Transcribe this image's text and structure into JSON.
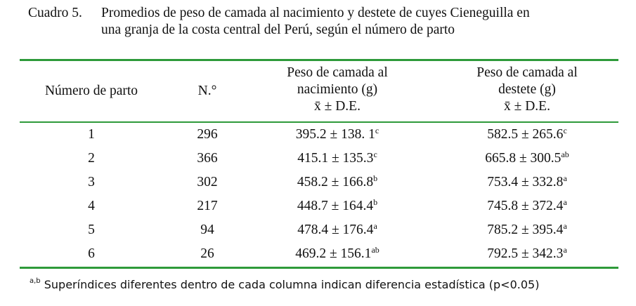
{
  "caption": {
    "label": "Cuadro 5.",
    "lines": [
      "Promedios de peso de camada al nacimiento y destete de cuyes Cieneguilla en",
      "una granja de la costa central del Perú, según el número de parto"
    ]
  },
  "table": {
    "headers": [
      {
        "lines": [
          "Número de parto"
        ]
      },
      {
        "lines": [
          "N.°"
        ]
      },
      {
        "lines": [
          "Peso de camada al",
          "nacimiento (g)",
          "x̄ ± D.E."
        ]
      },
      {
        "lines": [
          "Peso de camada al",
          "destete (g)",
          "x̄ ± D.E."
        ]
      }
    ],
    "rows": [
      [
        1,
        296,
        {
          "text": "395.2 ± 138. 1",
          "sup": "c"
        },
        {
          "text": "582.5 ± 265.6",
          "sup": "c"
        }
      ],
      [
        2,
        366,
        {
          "text": "415.1 ± 135.3",
          "sup": "c"
        },
        {
          "text": "665.8 ± 300.5",
          "sup": "ab"
        }
      ],
      [
        3,
        302,
        {
          "text": "458.2 ± 166.8",
          "sup": "b"
        },
        {
          "text": "753.4 ± 332.8",
          "sup": "a"
        }
      ],
      [
        4,
        217,
        {
          "text": "448.7 ± 164.4",
          "sup": "b"
        },
        {
          "text": "745.8 ± 372.4",
          "sup": "a"
        }
      ],
      [
        5,
        94,
        {
          "text": "478.4 ± 176.4",
          "sup": "a"
        },
        {
          "text": "785.2 ± 395.4",
          "sup": "a"
        }
      ],
      [
        6,
        26,
        {
          "text": "469.2 ± 156.1",
          "sup": "ab"
        },
        {
          "text": "792.5 ± 342.3",
          "sup": "a"
        }
      ]
    ]
  },
  "footnote": {
    "sup": "a,b",
    "text": "Superíndices diferentes dentro de cada columna indican diferencia estadística (p<0.05)"
  }
}
